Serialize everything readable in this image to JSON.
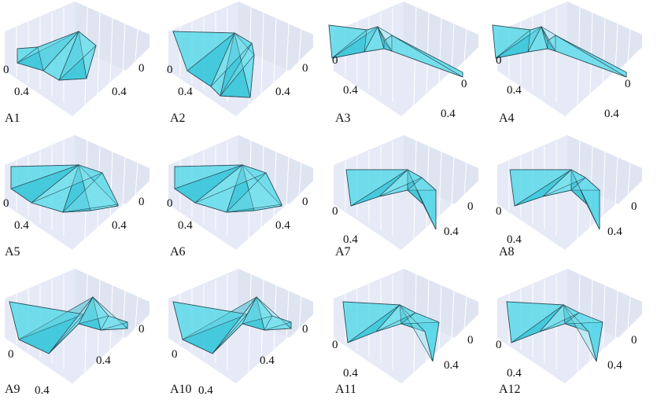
{
  "panels": [
    {
      "label": "A1",
      "tick_a_near": "0",
      "tick_a_far": "0.4",
      "tick_b_near": "0",
      "tick_b_far": "0.4",
      "shape": "fan-wide"
    },
    {
      "label": "A2",
      "tick_a_near": "0",
      "tick_a_far": "0.4",
      "tick_b_near": "0",
      "tick_b_far": "0.4",
      "shape": "fan-tall"
    },
    {
      "label": "A3",
      "tick_a_near": "0",
      "tick_a_far": "0.4",
      "tick_b_near": "0",
      "tick_b_far": "0.4",
      "shape": "arm-long"
    },
    {
      "label": "A4",
      "tick_a_near": "0",
      "tick_a_far": "0.4",
      "tick_b_near": "0",
      "tick_b_far": "0.4",
      "shape": "arm-long"
    },
    {
      "label": "A5",
      "tick_a_near": "0",
      "tick_a_far": "0.4",
      "tick_b_near": "0",
      "tick_b_far": "0.4",
      "shape": "fan-round"
    },
    {
      "label": "A6",
      "tick_a_near": "0",
      "tick_a_far": "0.4",
      "tick_b_near": "0",
      "tick_b_far": "0.4",
      "shape": "fan-round"
    },
    {
      "label": "A7",
      "tick_a_near": "0",
      "tick_a_far": "0.4",
      "tick_b_near": "0",
      "tick_b_far": "0.4",
      "shape": "hook"
    },
    {
      "label": "A8",
      "tick_a_near": "0",
      "tick_a_far": "0.4",
      "tick_b_near": "0",
      "tick_b_far": "0.4",
      "shape": "hook"
    },
    {
      "label": "A9",
      "tick_a_near": "0",
      "tick_a_far": "0.4",
      "tick_b_near": "0",
      "tick_b_far": "0.4",
      "shape": "zigzag"
    },
    {
      "label": "A10",
      "tick_a_near": "0",
      "tick_a_far": "0.4",
      "tick_b_near": "0",
      "tick_b_far": "0.4",
      "shape": "zigzag"
    },
    {
      "label": "A11",
      "tick_a_near": "0",
      "tick_a_far": "0.4",
      "tick_b_near": "0",
      "tick_b_far": "0.4",
      "shape": "hook-flat"
    },
    {
      "label": "A12",
      "tick_a_near": "0",
      "tick_a_far": "0.4",
      "tick_b_near": "0",
      "tick_b_far": "0.4",
      "shape": "hook-flat"
    }
  ],
  "colors": {
    "surface_fill": "#3fd3e6",
    "surface_fill_dark": "#26b8cc",
    "surface_fill_light": "#8fe6f0",
    "surface_edge": "#2c4f5a",
    "pane": "#e6eaf6",
    "pane_dark": "#dde2f0",
    "gridline": "#ffffff"
  }
}
